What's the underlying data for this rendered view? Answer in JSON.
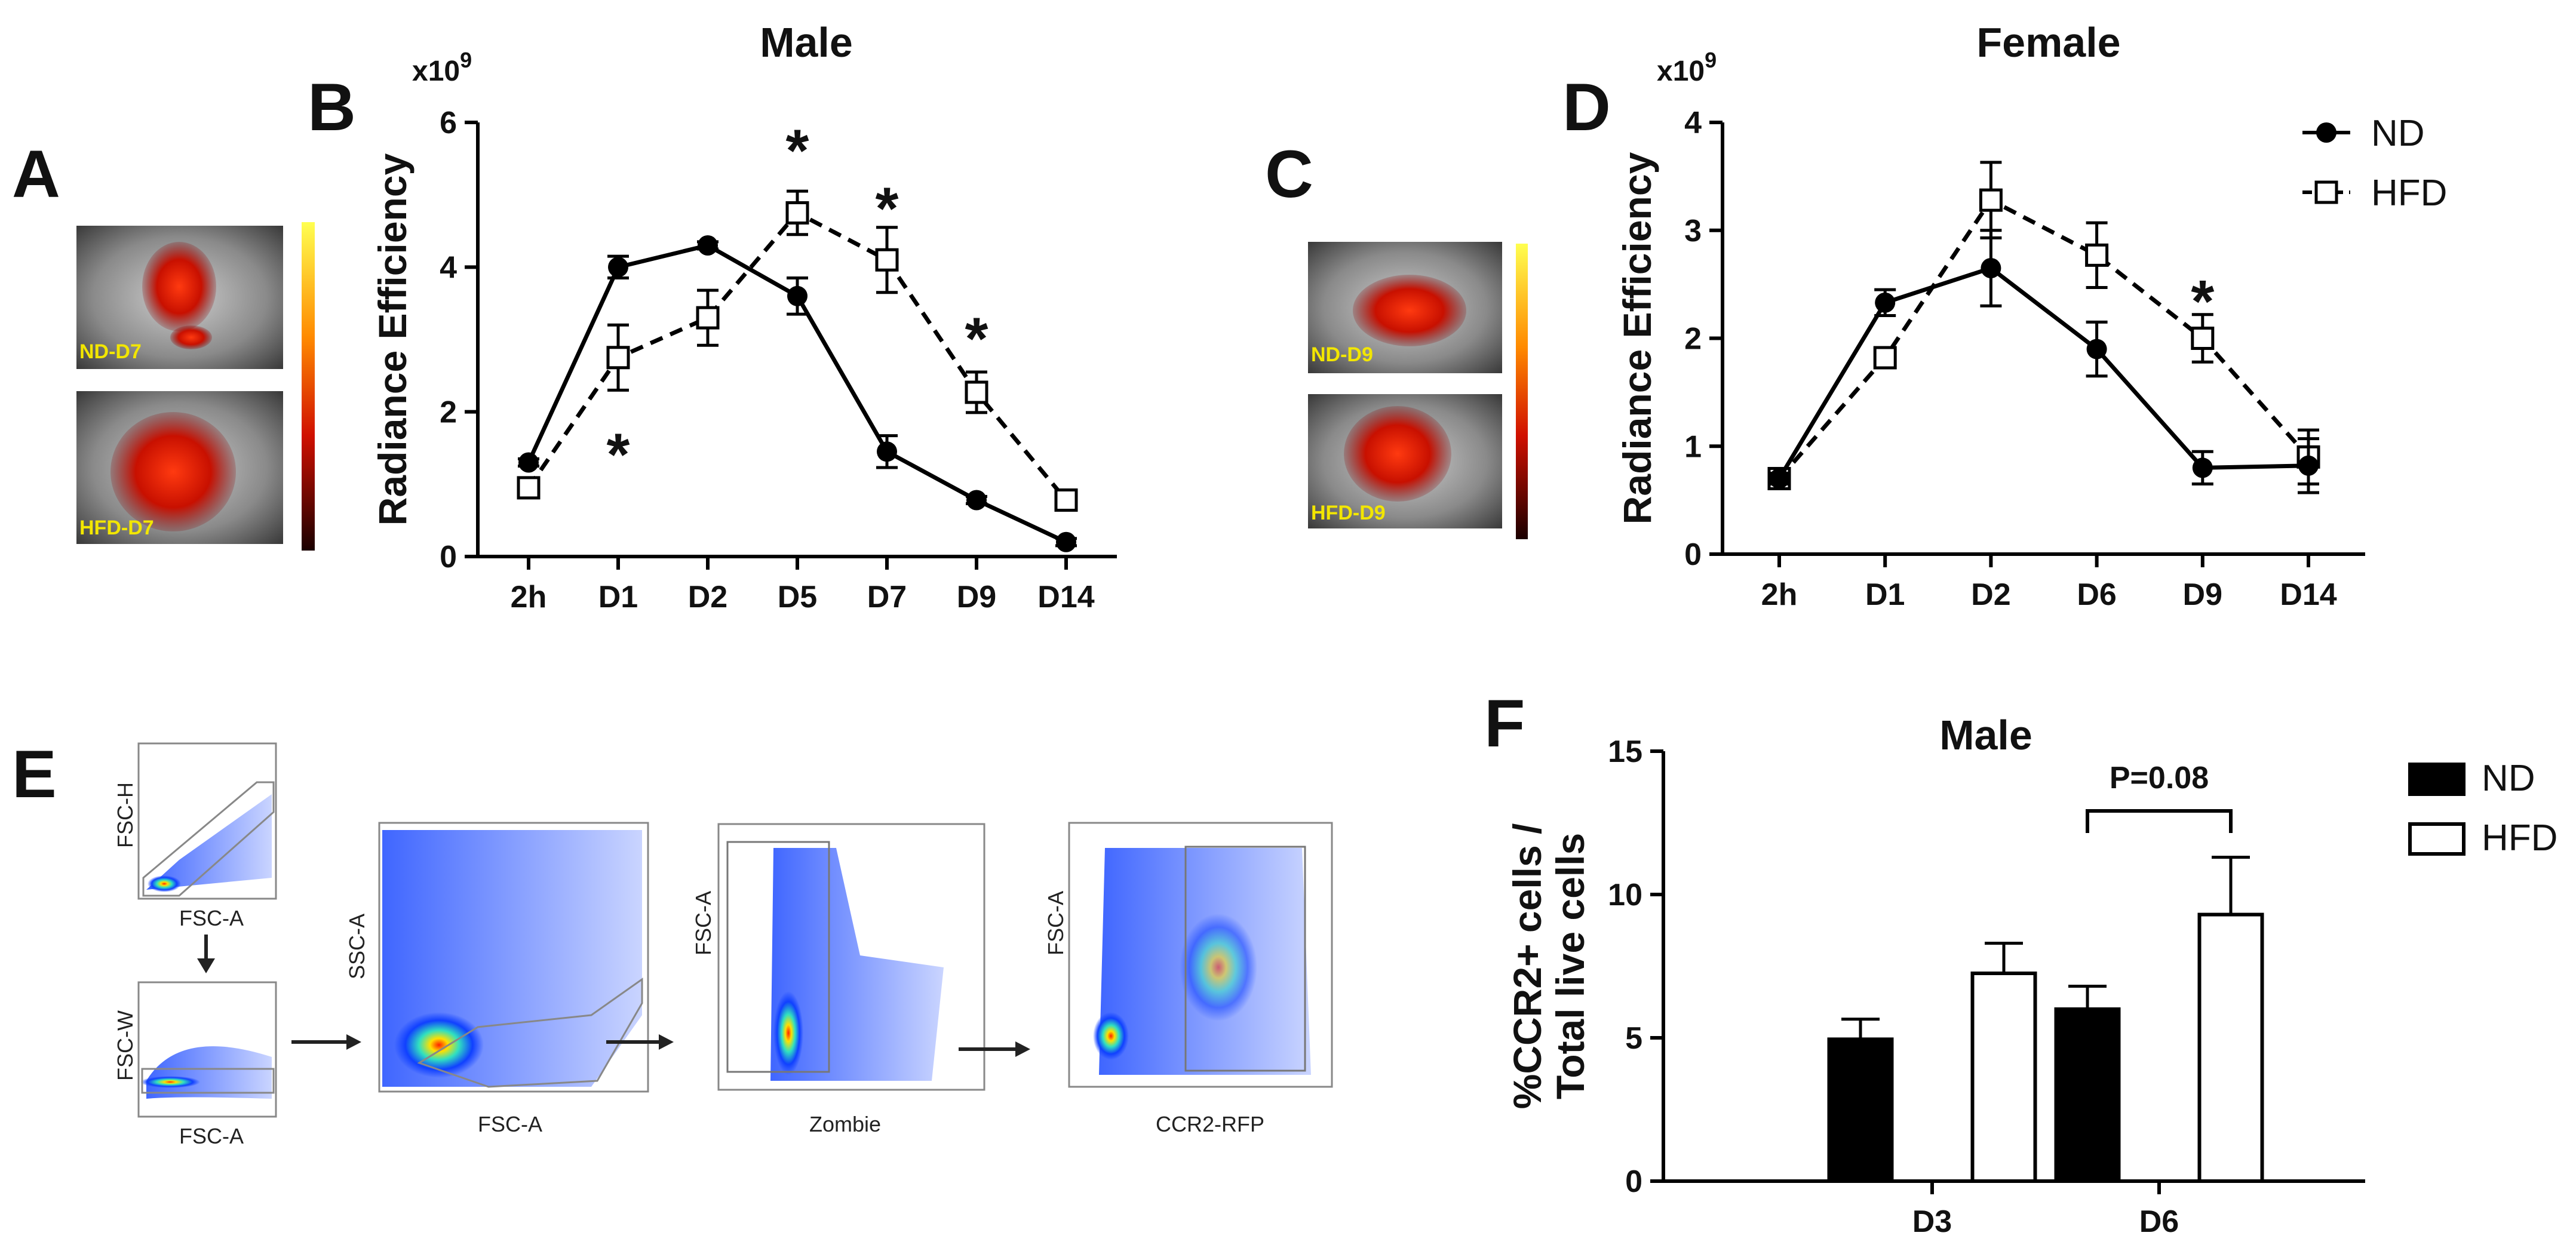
{
  "panels": {
    "a": {
      "letter": "A",
      "labels": [
        "ND-D7",
        "HFD-D7"
      ]
    },
    "b": {
      "letter": "B"
    },
    "c": {
      "letter": "C",
      "labels": [
        "ND-D9",
        "HFD-D9"
      ]
    },
    "d": {
      "letter": "D"
    },
    "e": {
      "letter": "E"
    },
    "f": {
      "letter": "F"
    }
  },
  "colors": {
    "nd": "#000000",
    "hfd": "#ffffff",
    "axis": "#000000",
    "colorbar_top": "#ffff40",
    "colorbar_mid": "#e03000",
    "colorbar_bot": "#200000"
  },
  "flow": {
    "plots": [
      {
        "name": "singlets-h",
        "xlabel": "FSC-A",
        "ylabel": "FSC-H"
      },
      {
        "name": "singlets-w",
        "xlabel": "FSC-A",
        "ylabel": "FSC-W"
      },
      {
        "name": "cells",
        "xlabel": "FSC-A",
        "ylabel": "SSC-A"
      },
      {
        "name": "live",
        "xlabel": "Zombie",
        "ylabel": "FSC-A"
      },
      {
        "name": "ccr2",
        "xlabel": "CCR2-RFP",
        "ylabel": "FSC-A"
      }
    ]
  },
  "chart_data": [
    {
      "id": "B",
      "type": "line",
      "title": "Male",
      "ylabel": "Radiance Efficiency",
      "multiplier": "x10",
      "multiplier_exp": "9",
      "categories": [
        "2h",
        "D1",
        "D2",
        "D5",
        "D7",
        "D9",
        "D14"
      ],
      "ylim": [
        0,
        6
      ],
      "yticks": [
        0,
        2,
        4,
        6
      ],
      "series": [
        {
          "name": "ND",
          "style": "solid-filled-circle",
          "values": [
            1.3,
            4.0,
            4.3,
            3.6,
            1.45,
            0.78,
            0.2
          ],
          "errors": [
            0.05,
            0.15,
            0.05,
            0.25,
            0.22,
            0.05,
            0.05
          ]
        },
        {
          "name": "HFD",
          "style": "dashed-open-square",
          "values": [
            0.95,
            2.75,
            3.3,
            4.75,
            4.1,
            2.27,
            0.78
          ],
          "errors": [
            0.05,
            0.45,
            0.38,
            0.3,
            0.45,
            0.28,
            0.05
          ]
        }
      ],
      "annotations": [
        {
          "text": "*",
          "x": "D1",
          "y": 1.5
        },
        {
          "text": "*",
          "x": "D5",
          "y": 5.7
        },
        {
          "text": "*",
          "x": "D7",
          "y": 4.9
        },
        {
          "text": "*",
          "x": "D9",
          "y": 3.1
        }
      ]
    },
    {
      "id": "D",
      "type": "line",
      "title": "Female",
      "ylabel": "Radiance Efficiency",
      "multiplier": "x10",
      "multiplier_exp": "9",
      "categories": [
        "2h",
        "D1",
        "D2",
        "D6",
        "D9",
        "D14"
      ],
      "ylim": [
        0,
        4
      ],
      "yticks": [
        0,
        1,
        2,
        3,
        4
      ],
      "legend": [
        "ND",
        "HFD"
      ],
      "series": [
        {
          "name": "ND",
          "style": "solid-filled-circle",
          "values": [
            0.7,
            2.33,
            2.65,
            1.9,
            0.8,
            0.82
          ],
          "errors": [
            0.05,
            0.12,
            0.35,
            0.25,
            0.15,
            0.25
          ]
        },
        {
          "name": "HFD",
          "style": "dashed-open-square",
          "values": [
            0.7,
            1.82,
            3.28,
            2.77,
            2.0,
            0.9
          ],
          "errors": [
            0.05,
            0.08,
            0.35,
            0.3,
            0.22,
            0.25
          ]
        }
      ],
      "annotations": [
        {
          "text": "*",
          "x": "D9",
          "y": 2.4
        }
      ]
    },
    {
      "id": "F",
      "type": "bar",
      "title": "Male",
      "ylabel_lines": [
        "%CCR2+ cells /",
        "Total live cells"
      ],
      "categories": [
        "D3",
        "D6"
      ],
      "ylim": [
        0,
        15
      ],
      "yticks": [
        0,
        5,
        10,
        15
      ],
      "legend": [
        "ND",
        "HFD"
      ],
      "series": [
        {
          "name": "ND",
          "fill": "black",
          "values": [
            4.95,
            6.0
          ],
          "errors": [
            0.7,
            0.8
          ]
        },
        {
          "name": "HFD",
          "fill": "white",
          "values": [
            7.25,
            9.3
          ],
          "errors": [
            1.05,
            2.0
          ]
        }
      ],
      "annotations": [
        {
          "text": "P=0.08",
          "bracket_between": [
            "ND",
            "HFD"
          ],
          "category": "D6"
        }
      ]
    }
  ]
}
